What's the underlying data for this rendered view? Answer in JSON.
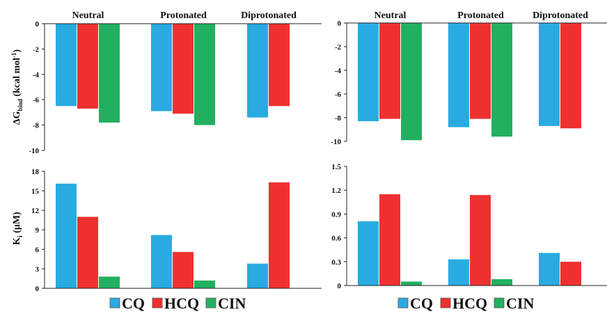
{
  "series_names": [
    "CQ",
    "HCQ",
    "CIN"
  ],
  "colors": {
    "CQ": "#29abe2",
    "HCQ": "#ee3130",
    "CIN": "#22b060"
  },
  "groups": [
    "Neutral",
    "Protonated",
    "Diprotonated"
  ],
  "ylabels": {
    "dg": {
      "main": "ΔG",
      "sub": "bind",
      "rest": " (kcal mol",
      "sup": "-1",
      "close": ")"
    },
    "ki": {
      "main": "K",
      "sub": "i",
      "rest": " (μM)"
    }
  },
  "chart_data": [
    {
      "type": "bar",
      "ylabel": "ΔGbind (kcal mol-1)",
      "categories": [
        "Neutral",
        "Protonated",
        "Diprotonated"
      ],
      "ylim": [
        -10,
        0
      ],
      "yticks": [
        0,
        -2,
        -4,
        -6,
        -8,
        -10
      ],
      "tick_labels": [
        "0",
        "-2",
        "-4",
        "-6",
        "-8",
        "-10"
      ],
      "series": [
        {
          "name": "CQ",
          "values": [
            -6.5,
            -6.9,
            -7.4
          ]
        },
        {
          "name": "HCQ",
          "values": [
            -6.7,
            -7.1,
            -6.5
          ]
        },
        {
          "name": "CIN",
          "values": [
            -7.8,
            -8.0,
            null
          ]
        }
      ]
    },
    {
      "type": "bar",
      "categories": [
        "Neutral",
        "Protonated",
        "Diprotonated"
      ],
      "ylim": [
        -10,
        0
      ],
      "yticks": [
        0,
        -2,
        -4,
        -6,
        -8,
        -10
      ],
      "tick_labels": [
        "0",
        "-2",
        "-4",
        "-6",
        "-8",
        "-10"
      ],
      "series": [
        {
          "name": "CQ",
          "values": [
            -8.3,
            -8.8,
            -8.7
          ]
        },
        {
          "name": "HCQ",
          "values": [
            -8.1,
            -8.1,
            -8.9
          ]
        },
        {
          "name": "CIN",
          "values": [
            -9.9,
            -9.6,
            null
          ]
        }
      ]
    },
    {
      "type": "bar",
      "ylabel": "Ki (μM)",
      "categories": [
        "Neutral",
        "Protonated",
        "Diprotonated"
      ],
      "ylim": [
        0,
        18
      ],
      "yticks": [
        0,
        3,
        6,
        9,
        12,
        15,
        18
      ],
      "tick_labels": [
        "0",
        "3",
        "6",
        "9",
        "12",
        "15",
        "18"
      ],
      "series": [
        {
          "name": "CQ",
          "values": [
            16.1,
            8.2,
            3.8
          ]
        },
        {
          "name": "HCQ",
          "values": [
            11.0,
            5.6,
            16.3
          ]
        },
        {
          "name": "CIN",
          "values": [
            1.8,
            1.2,
            null
          ]
        }
      ]
    },
    {
      "type": "bar",
      "categories": [
        "Neutral",
        "Protonated",
        "Diprotonated"
      ],
      "ylim": [
        0,
        1.5
      ],
      "yticks": [
        0,
        0.3,
        0.6,
        0.9,
        1.2,
        1.5
      ],
      "tick_labels": [
        "0",
        "0.3",
        "0.6",
        "0.9",
        "1.2",
        "1.5"
      ],
      "series": [
        {
          "name": "CQ",
          "values": [
            0.81,
            0.33,
            0.41
          ]
        },
        {
          "name": "HCQ",
          "values": [
            1.15,
            1.14,
            0.3
          ]
        },
        {
          "name": "CIN",
          "values": [
            0.05,
            0.08,
            null
          ]
        }
      ]
    }
  ]
}
